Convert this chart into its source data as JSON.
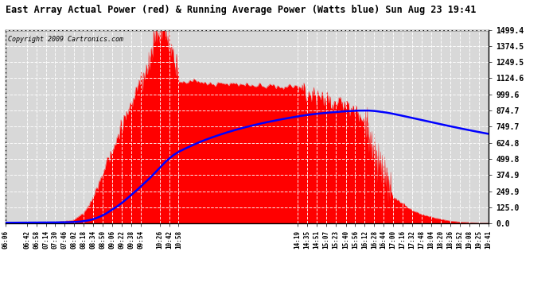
{
  "title": "East Array Actual Power (red) & Running Average Power (Watts blue) Sun Aug 23 19:41",
  "copyright": "Copyright 2009 Cartronics.com",
  "yticks": [
    0.0,
    125.0,
    249.9,
    374.9,
    499.8,
    624.8,
    749.7,
    874.7,
    999.6,
    1124.6,
    1249.5,
    1374.5,
    1499.4
  ],
  "ylim": [
    0.0,
    1499.4
  ],
  "bg_color": "#ffffff",
  "plot_bg_color": "#d8d8d8",
  "grid_color": "#ffffff",
  "fill_color": "#ff0000",
  "avg_color": "#0000ff",
  "title_color": "#000000",
  "copyright_color": "#000000",
  "xtick_labels": [
    "06:06",
    "06:42",
    "06:58",
    "07:14",
    "07:30",
    "07:46",
    "08:02",
    "08:18",
    "08:34",
    "08:50",
    "09:06",
    "09:22",
    "09:38",
    "09:54",
    "10:26",
    "10:42",
    "10:58",
    "14:19",
    "14:35",
    "14:51",
    "15:07",
    "15:23",
    "15:40",
    "15:56",
    "16:12",
    "16:28",
    "16:44",
    "17:00",
    "17:16",
    "17:32",
    "17:48",
    "18:04",
    "18:20",
    "18:36",
    "18:52",
    "19:08",
    "19:25",
    "19:41"
  ]
}
